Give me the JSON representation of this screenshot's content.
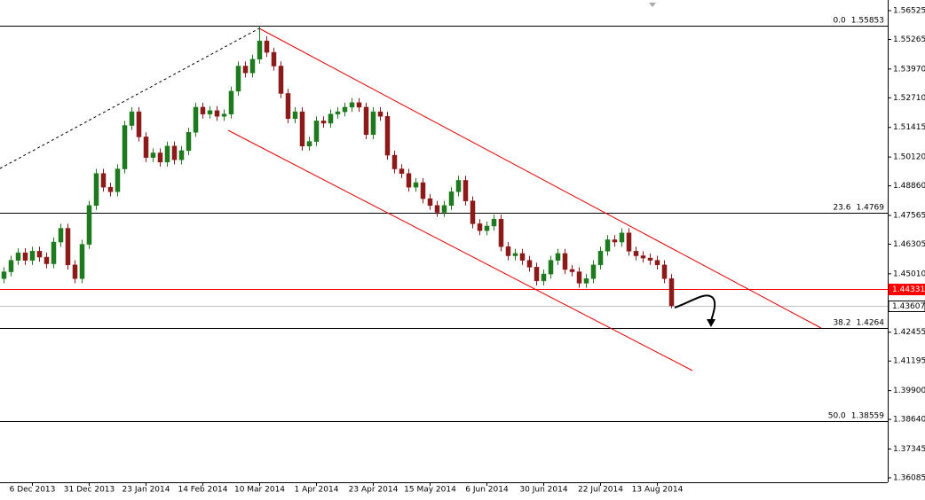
{
  "chart_data": {
    "type": "candlestick",
    "categories": [
      null,
      null,
      null,
      null,
      "6 Dec 2013",
      null,
      null,
      null,
      null,
      null,
      null,
      null,
      "31 Dec 2013",
      null,
      null,
      null,
      null,
      null,
      null,
      null,
      "23 Jan 2014",
      null,
      null,
      null,
      null,
      null,
      null,
      null,
      "14 Feb 2014",
      null,
      null,
      null,
      null,
      null,
      null,
      null,
      "10 Mar 2014",
      null,
      null,
      null,
      null,
      null,
      null,
      null,
      "1 Apr 2014",
      null,
      null,
      null,
      null,
      null,
      null,
      null,
      "23 Apr 2014",
      null,
      null,
      null,
      null,
      null,
      null,
      null,
      "15 May 2014",
      null,
      null,
      null,
      null,
      null,
      null,
      null,
      "6 Jun 2014",
      null,
      null,
      null,
      null,
      null,
      null,
      null,
      "30 Jun 2014",
      null,
      null,
      null,
      null,
      null,
      null,
      null,
      "22 Jul 2014",
      null,
      null,
      null,
      null,
      null,
      null,
      null,
      "13 Aug 2014",
      null,
      null
    ],
    "open": [
      1.448,
      1.451,
      1.456,
      1.4593,
      1.456,
      1.46,
      1.4574,
      1.4545,
      1.464,
      1.47,
      1.454,
      1.448,
      1.463,
      1.48,
      1.494,
      1.488,
      1.486,
      1.496,
      1.515,
      1.521,
      1.51,
      1.501,
      1.503,
      1.499,
      1.506,
      1.5,
      1.504,
      1.512,
      1.523,
      1.52,
      1.5215,
      1.519,
      1.52,
      1.53,
      1.541,
      1.538,
      1.544,
      1.552,
      1.547,
      1.541,
      1.529,
      1.518,
      1.521,
      1.506,
      1.508,
      1.517,
      1.516,
      1.52,
      1.521,
      1.523,
      1.525,
      1.523,
      1.511,
      1.521,
      1.519,
      1.502,
      1.496,
      1.494,
      1.488,
      1.49,
      1.483,
      1.48,
      1.477,
      1.48,
      1.486,
      1.491,
      1.482,
      1.472,
      1.469,
      1.471,
      1.474,
      1.462,
      1.458,
      1.459,
      1.456,
      1.453,
      1.447,
      1.45,
      1.456,
      1.459,
      1.452,
      1.451,
      1.446,
      1.448,
      1.454,
      1.46,
      1.465,
      1.464,
      1.468,
      1.46,
      1.458,
      1.457,
      1.456,
      1.454,
      1.448
    ],
    "high": [
      1.453,
      1.458,
      1.4613,
      1.4613,
      1.462,
      1.462,
      1.4594,
      1.466,
      1.472,
      1.472,
      1.456,
      1.465,
      1.482,
      1.496,
      1.496,
      1.49,
      1.498,
      1.517,
      1.523,
      1.523,
      1.512,
      1.505,
      1.505,
      1.508,
      1.508,
      1.506,
      1.514,
      1.525,
      1.525,
      1.5235,
      1.5235,
      1.522,
      1.532,
      1.543,
      1.543,
      1.546,
      1.5585,
      1.554,
      1.549,
      1.543,
      1.531,
      1.523,
      1.523,
      1.51,
      1.519,
      1.519,
      1.522,
      1.523,
      1.525,
      1.527,
      1.527,
      1.525,
      1.523,
      1.523,
      1.521,
      1.504,
      1.498,
      1.496,
      1.492,
      1.492,
      1.485,
      1.482,
      1.482,
      1.488,
      1.493,
      1.493,
      1.484,
      1.474,
      1.473,
      1.476,
      1.476,
      1.464,
      1.461,
      1.461,
      1.458,
      1.455,
      1.452,
      1.458,
      1.461,
      1.461,
      1.454,
      1.453,
      1.45,
      1.456,
      1.462,
      1.467,
      1.467,
      1.47,
      1.47,
      1.462,
      1.46,
      1.459,
      1.458,
      1.456,
      1.45
    ],
    "low": [
      1.446,
      1.449,
      1.454,
      1.454,
      1.454,
      1.4554,
      1.4525,
      1.4525,
      1.462,
      1.452,
      1.446,
      1.446,
      1.461,
      1.478,
      1.486,
      1.484,
      1.484,
      1.494,
      1.513,
      1.508,
      1.499,
      1.499,
      1.497,
      1.497,
      1.498,
      1.498,
      1.502,
      1.51,
      1.518,
      1.518,
      1.517,
      1.517,
      1.518,
      1.528,
      1.536,
      1.536,
      1.542,
      1.545,
      1.539,
      1.527,
      1.516,
      1.516,
      1.504,
      1.504,
      1.506,
      1.514,
      1.514,
      1.518,
      1.519,
      1.521,
      1.521,
      1.509,
      1.509,
      1.517,
      1.5,
      1.494,
      1.492,
      1.486,
      1.486,
      1.481,
      1.478,
      1.475,
      1.475,
      1.478,
      1.484,
      1.48,
      1.47,
      1.467,
      1.467,
      1.469,
      1.46,
      1.456,
      1.456,
      1.454,
      1.451,
      1.445,
      1.445,
      1.448,
      1.454,
      1.45,
      1.449,
      1.444,
      1.444,
      1.446,
      1.452,
      1.458,
      1.462,
      1.462,
      1.458,
      1.456,
      1.455,
      1.454,
      1.452,
      1.446,
      1.435
    ],
    "close": [
      1.451,
      1.456,
      1.4593,
      1.456,
      1.46,
      1.4574,
      1.4545,
      1.464,
      1.47,
      1.454,
      1.448,
      1.463,
      1.48,
      1.494,
      1.488,
      1.486,
      1.496,
      1.515,
      1.521,
      1.51,
      1.501,
      1.503,
      1.499,
      1.506,
      1.5,
      1.504,
      1.512,
      1.523,
      1.52,
      1.5215,
      1.519,
      1.52,
      1.53,
      1.541,
      1.538,
      1.544,
      1.552,
      1.547,
      1.541,
      1.529,
      1.518,
      1.521,
      1.506,
      1.508,
      1.517,
      1.516,
      1.52,
      1.521,
      1.523,
      1.525,
      1.523,
      1.511,
      1.521,
      1.519,
      1.502,
      1.496,
      1.494,
      1.488,
      1.49,
      1.483,
      1.48,
      1.477,
      1.48,
      1.486,
      1.491,
      1.482,
      1.472,
      1.469,
      1.471,
      1.474,
      1.462,
      1.458,
      1.459,
      1.456,
      1.453,
      1.447,
      1.45,
      1.456,
      1.459,
      1.452,
      1.451,
      1.446,
      1.448,
      1.454,
      1.46,
      1.465,
      1.464,
      1.468,
      1.46,
      1.458,
      1.457,
      1.456,
      1.454,
      1.448,
      1.4361
    ],
    "up_color": "#1f7a1f",
    "down_color": "#8b1a1a",
    "ylim": [
      1.3589,
      1.5699
    ],
    "yticks": [
      {
        "value": 1.56525,
        "label": "1.56525"
      },
      {
        "value": 1.55265,
        "label": "1.55265"
      },
      {
        "value": 1.5397,
        "label": "1.53970"
      },
      {
        "value": 1.5271,
        "label": "1.52710"
      },
      {
        "value": 1.51415,
        "label": "1.51415"
      },
      {
        "value": 1.5012,
        "label": "1.50120"
      },
      {
        "value": 1.4886,
        "label": "1.48860"
      },
      {
        "value": 1.47565,
        "label": "1.47565"
      },
      {
        "value": 1.46305,
        "label": "1.46305"
      },
      {
        "value": 1.4501,
        "label": "1.45010"
      },
      {
        "value": 1.42455,
        "label": "1.42455"
      },
      {
        "value": 1.41195,
        "label": "1.41195"
      },
      {
        "value": 1.399,
        "label": "1.39900"
      },
      {
        "value": 1.3864,
        "label": "1.38640"
      },
      {
        "value": 1.37345,
        "label": "1.37345"
      },
      {
        "value": 1.36085,
        "label": "1.36085"
      }
    ],
    "fib_levels": [
      {
        "level": "0.0",
        "price": 1.55853
      },
      {
        "level": "23.6",
        "price": 1.4769
      },
      {
        "level": "38.2",
        "price": 1.4264
      },
      {
        "level": "50.0",
        "price": 1.38559
      }
    ],
    "price_lines": [
      {
        "price": 1.44331,
        "color": "#ff0000"
      },
      {
        "price": 1.43607,
        "color": "#c0c0c0"
      }
    ]
  }
}
